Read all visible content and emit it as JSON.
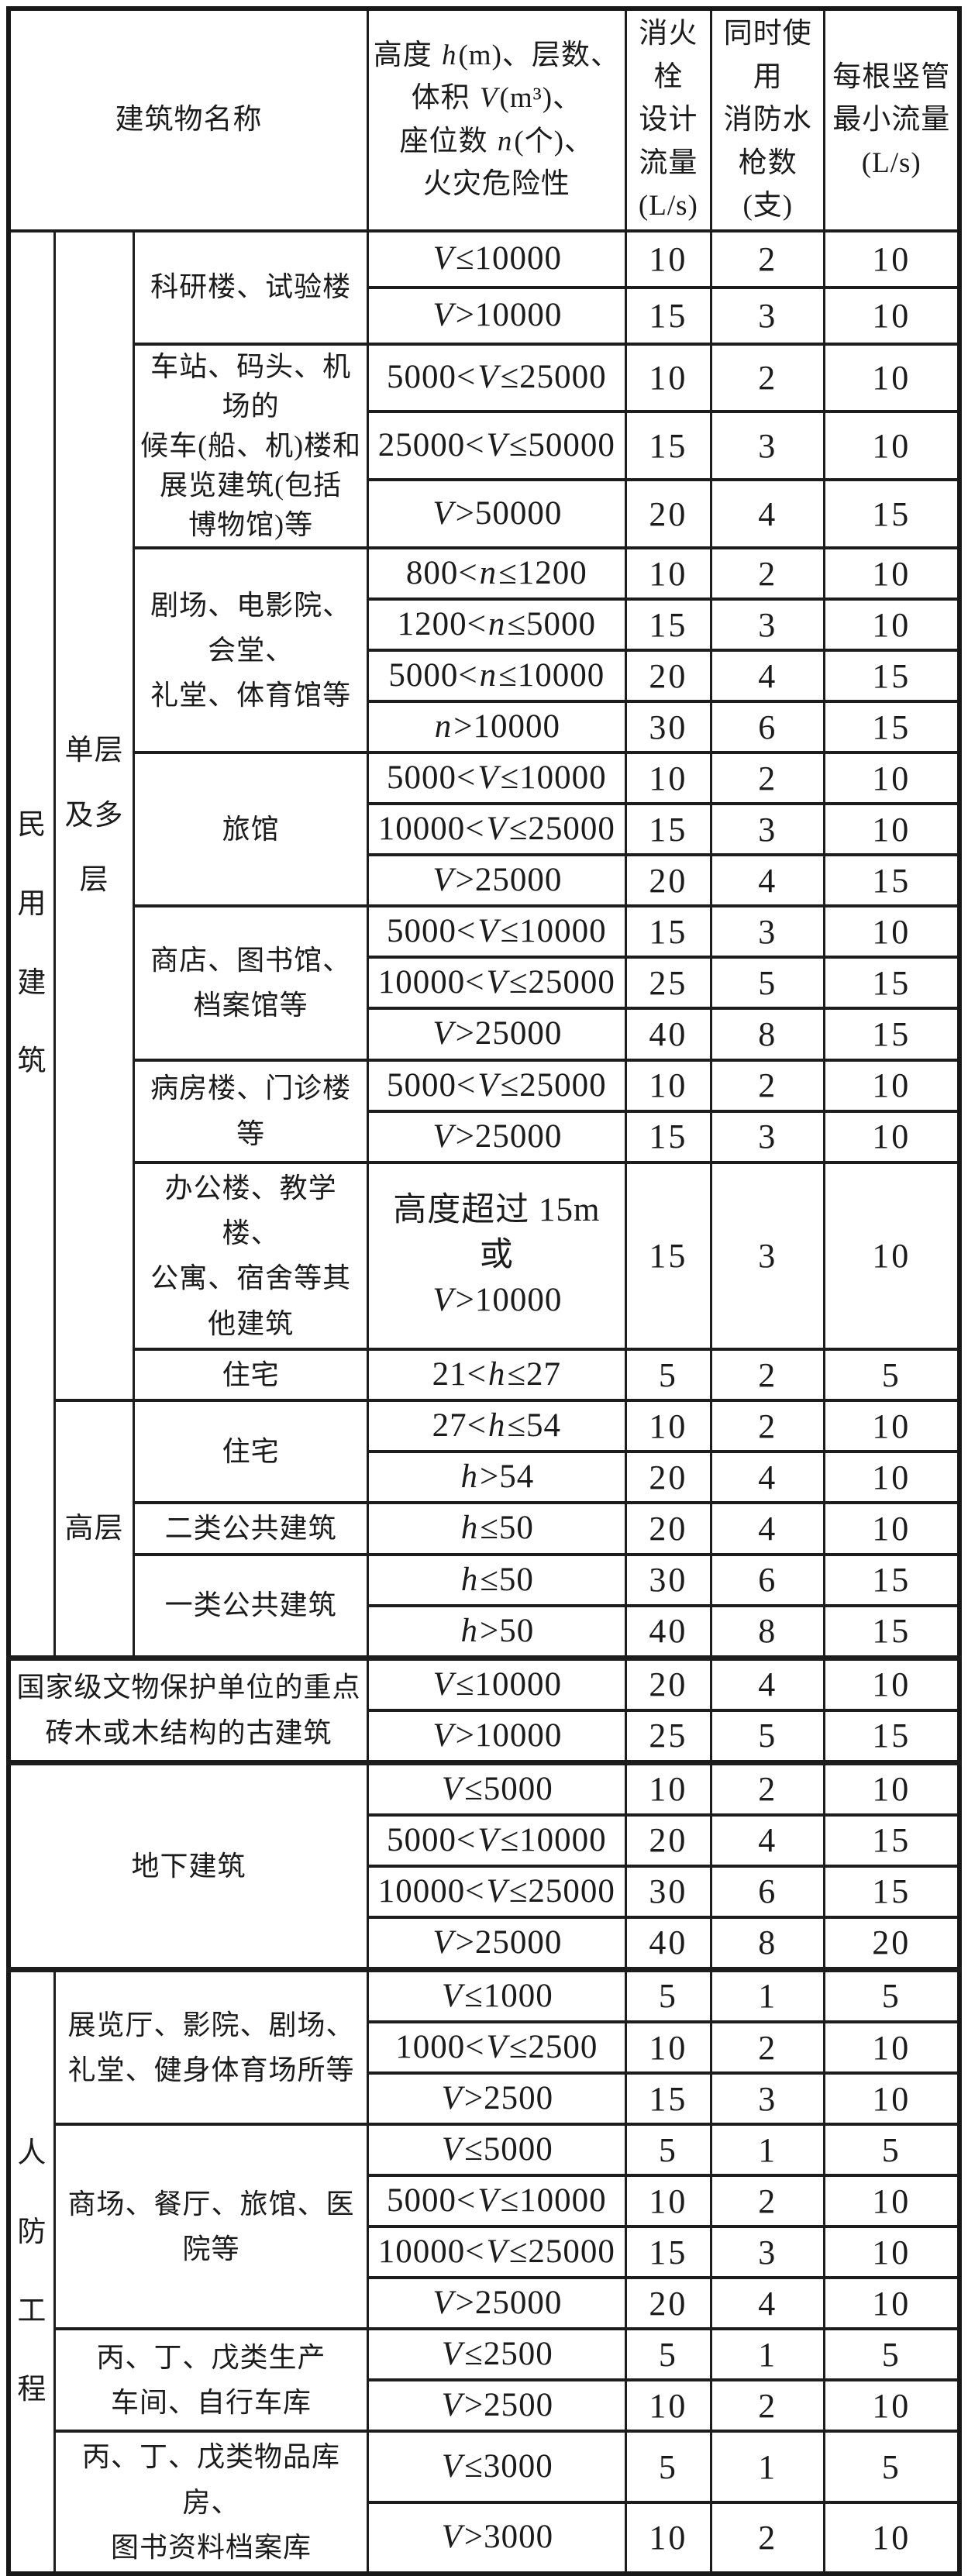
{
  "header": {
    "building_name": "建筑物名称",
    "criteria": "高度 h(m)、层数、\n体积 V(m³)、\n座位数 n(个)、\n火灾危险性",
    "hydrant_flow": "消火栓\n设计\n流量\n(L/s)",
    "jets": "同时使用\n消防水\n枪数\n(支)",
    "riser_min_flow": "每根竖管\n最小流量\n(L/s)"
  },
  "categories": {
    "civil": "民\n用\n建\n筑",
    "single_multi": "单层\n及多层",
    "highrise": "高层",
    "civil_defense": "人\n防\n工\n程"
  },
  "groups": {
    "research": "科研楼、试验楼",
    "station": "车站、码头、机场的\n候车(船、机)楼和\n展览建筑(包括\n博物馆)等",
    "theater": "剧场、电影院、会堂、\n礼堂、体育馆等",
    "hotel": "旅馆",
    "shop": "商店、图书馆、\n档案馆等",
    "hospital": "病房楼、门诊楼等",
    "office": "办公楼、教学楼、\n公寓、宿舍等其他建筑",
    "residence_lowrise": "住宅",
    "residence_highrise": "住宅",
    "public_class2": "二类公共建筑",
    "public_class1": "一类公共建筑",
    "heritage": "国家级文物保护单位的重点\n砖木或木结构的古建筑",
    "underground": "地下建筑",
    "exhibition": "展览厅、影院、剧场、\n礼堂、健身体育场所等",
    "mall": "商场、餐厅、旅馆、医院等",
    "workshop": "丙、丁、戊类生产\n车间、自行车库",
    "warehouse": "丙、丁、戊类物品库房、\n图书资料档案库"
  },
  "rows": [
    {
      "criteria": "V≤10000",
      "flow": "10",
      "jets": "2",
      "riser": "10"
    },
    {
      "criteria": "V>10000",
      "flow": "15",
      "jets": "3",
      "riser": "10"
    },
    {
      "criteria": "5000<V≤25000",
      "flow": "10",
      "jets": "2",
      "riser": "10"
    },
    {
      "criteria": "25000<V≤50000",
      "flow": "15",
      "jets": "3",
      "riser": "10"
    },
    {
      "criteria": "V>50000",
      "flow": "20",
      "jets": "4",
      "riser": "15"
    },
    {
      "criteria": "800<n≤1200",
      "flow": "10",
      "jets": "2",
      "riser": "10"
    },
    {
      "criteria": "1200<n≤5000",
      "flow": "15",
      "jets": "3",
      "riser": "10"
    },
    {
      "criteria": "5000<n≤10000",
      "flow": "20",
      "jets": "4",
      "riser": "15"
    },
    {
      "criteria": "n>10000",
      "flow": "30",
      "jets": "6",
      "riser": "15"
    },
    {
      "criteria": "5000<V≤10000",
      "flow": "10",
      "jets": "2",
      "riser": "10"
    },
    {
      "criteria": "10000<V≤25000",
      "flow": "15",
      "jets": "3",
      "riser": "10"
    },
    {
      "criteria": "V>25000",
      "flow": "20",
      "jets": "4",
      "riser": "15"
    },
    {
      "criteria": "5000<V≤10000",
      "flow": "15",
      "jets": "3",
      "riser": "10"
    },
    {
      "criteria": "10000<V≤25000",
      "flow": "25",
      "jets": "5",
      "riser": "15"
    },
    {
      "criteria": "V>25000",
      "flow": "40",
      "jets": "8",
      "riser": "15"
    },
    {
      "criteria": "5000<V≤25000",
      "flow": "10",
      "jets": "2",
      "riser": "10"
    },
    {
      "criteria": "V>25000",
      "flow": "15",
      "jets": "3",
      "riser": "10"
    },
    {
      "criteria": "高度超过 15m 或\nV>10000",
      "flow": "15",
      "jets": "3",
      "riser": "10"
    },
    {
      "criteria": "21<h≤27",
      "flow": "5",
      "jets": "2",
      "riser": "5"
    },
    {
      "criteria": "27<h≤54",
      "flow": "10",
      "jets": "2",
      "riser": "10"
    },
    {
      "criteria": "h>54",
      "flow": "20",
      "jets": "4",
      "riser": "10"
    },
    {
      "criteria": "h≤50",
      "flow": "20",
      "jets": "4",
      "riser": "10"
    },
    {
      "criteria": "h≤50",
      "flow": "30",
      "jets": "6",
      "riser": "15"
    },
    {
      "criteria": "h>50",
      "flow": "40",
      "jets": "8",
      "riser": "15"
    },
    {
      "criteria": "V≤10000",
      "flow": "20",
      "jets": "4",
      "riser": "10"
    },
    {
      "criteria": "V>10000",
      "flow": "25",
      "jets": "5",
      "riser": "15"
    },
    {
      "criteria": "V≤5000",
      "flow": "10",
      "jets": "2",
      "riser": "10"
    },
    {
      "criteria": "5000<V≤10000",
      "flow": "20",
      "jets": "4",
      "riser": "15"
    },
    {
      "criteria": "10000<V≤25000",
      "flow": "30",
      "jets": "6",
      "riser": "15"
    },
    {
      "criteria": "V>25000",
      "flow": "40",
      "jets": "8",
      "riser": "20"
    },
    {
      "criteria": "V≤1000",
      "flow": "5",
      "jets": "1",
      "riser": "5"
    },
    {
      "criteria": "1000<V≤2500",
      "flow": "10",
      "jets": "2",
      "riser": "10"
    },
    {
      "criteria": "V>2500",
      "flow": "15",
      "jets": "3",
      "riser": "10"
    },
    {
      "criteria": "V≤5000",
      "flow": "5",
      "jets": "1",
      "riser": "5"
    },
    {
      "criteria": "5000<V≤10000",
      "flow": "10",
      "jets": "2",
      "riser": "10"
    },
    {
      "criteria": "10000<V≤25000",
      "flow": "15",
      "jets": "3",
      "riser": "10"
    },
    {
      "criteria": "V>25000",
      "flow": "20",
      "jets": "4",
      "riser": "10"
    },
    {
      "criteria": "V≤2500",
      "flow": "5",
      "jets": "1",
      "riser": "5"
    },
    {
      "criteria": "V>2500",
      "flow": "10",
      "jets": "2",
      "riser": "10"
    },
    {
      "criteria": "V≤3000",
      "flow": "5",
      "jets": "1",
      "riser": "5"
    },
    {
      "criteria": "V>3000",
      "flow": "10",
      "jets": "2",
      "riser": "10"
    }
  ]
}
